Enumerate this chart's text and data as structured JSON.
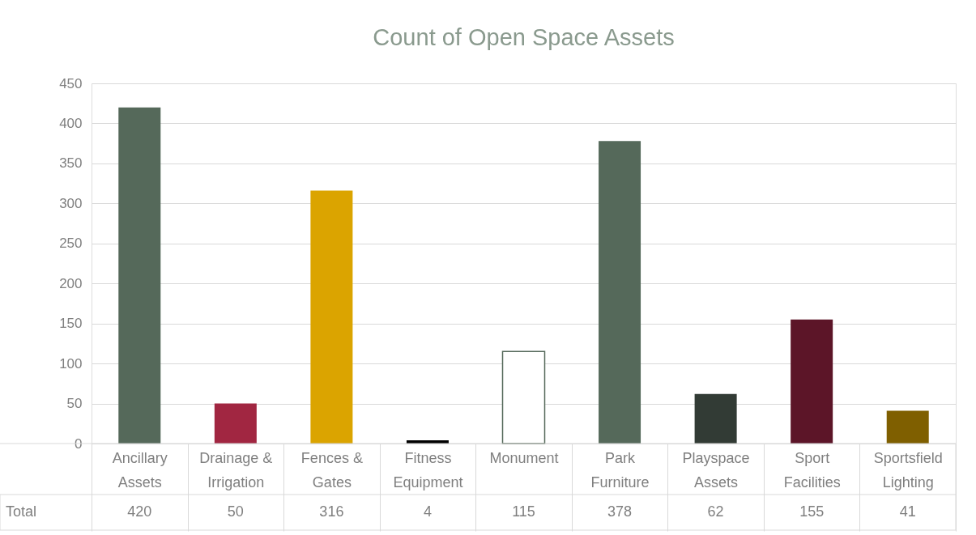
{
  "chart_data": {
    "type": "bar",
    "title": "Count of Open Space Assets",
    "categories": [
      "Ancillary Assets",
      "Drainage & Irrigation",
      "Fences & Gates",
      "Fitness Equipment",
      "Monument",
      "Park Furniture",
      "Playspace Assets",
      "Sport Facilities",
      "Sportsfield Lighting"
    ],
    "series": [
      {
        "name": "Total",
        "values": [
          420,
          50,
          316,
          4,
          115,
          378,
          62,
          155,
          41
        ],
        "colors": [
          "#55695a",
          "#a12641",
          "#dba400",
          "#000000",
          "#ffffff",
          "#55695a",
          "#323b35",
          "#5c1528",
          "#7f5f00"
        ]
      }
    ],
    "ylim": [
      0,
      450
    ],
    "yticks": [
      0,
      50,
      100,
      150,
      200,
      250,
      300,
      350,
      400,
      450
    ],
    "grid": "y",
    "legend": false,
    "data_labels": true
  }
}
